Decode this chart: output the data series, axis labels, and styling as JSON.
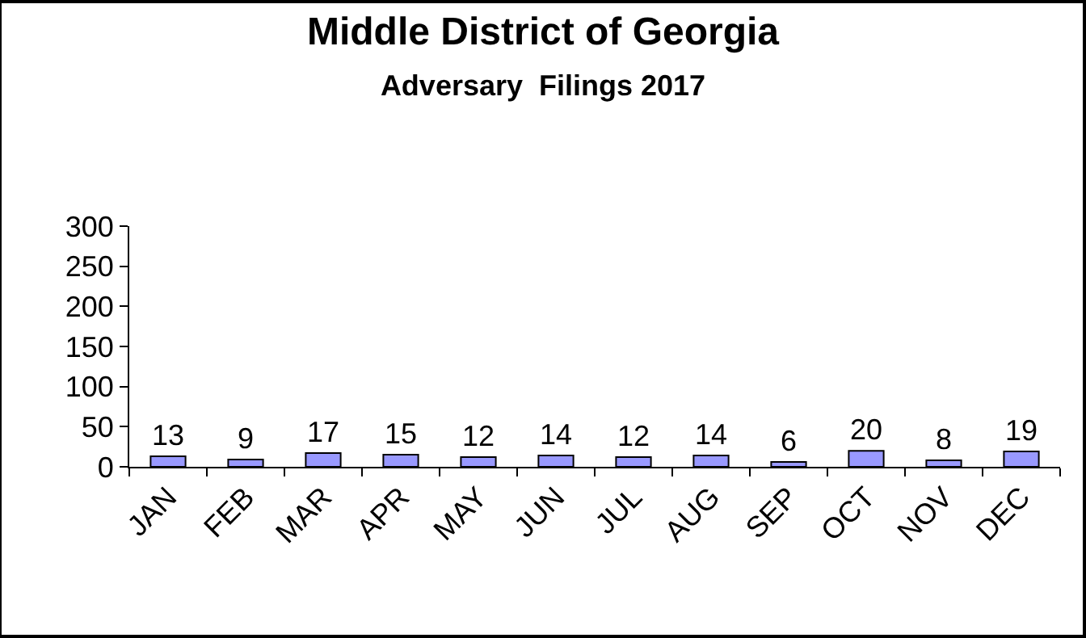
{
  "chart_data": {
    "type": "bar",
    "title": "Middle District of Georgia",
    "subtitle": "Adversary  Filings 2017",
    "categories": [
      "JAN",
      "FEB",
      "MAR",
      "APR",
      "MAY",
      "JUN",
      "JUL",
      "AUG",
      "SEP",
      "OCT",
      "NOV",
      "DEC"
    ],
    "values": [
      13,
      9,
      17,
      15,
      12,
      14,
      12,
      14,
      6,
      20,
      8,
      19
    ],
    "color": "#9999ff",
    "ylim": [
      0,
      300
    ],
    "yticks": [
      0,
      50,
      100,
      150,
      200,
      250,
      300
    ],
    "grid": false,
    "data_labels": true
  }
}
